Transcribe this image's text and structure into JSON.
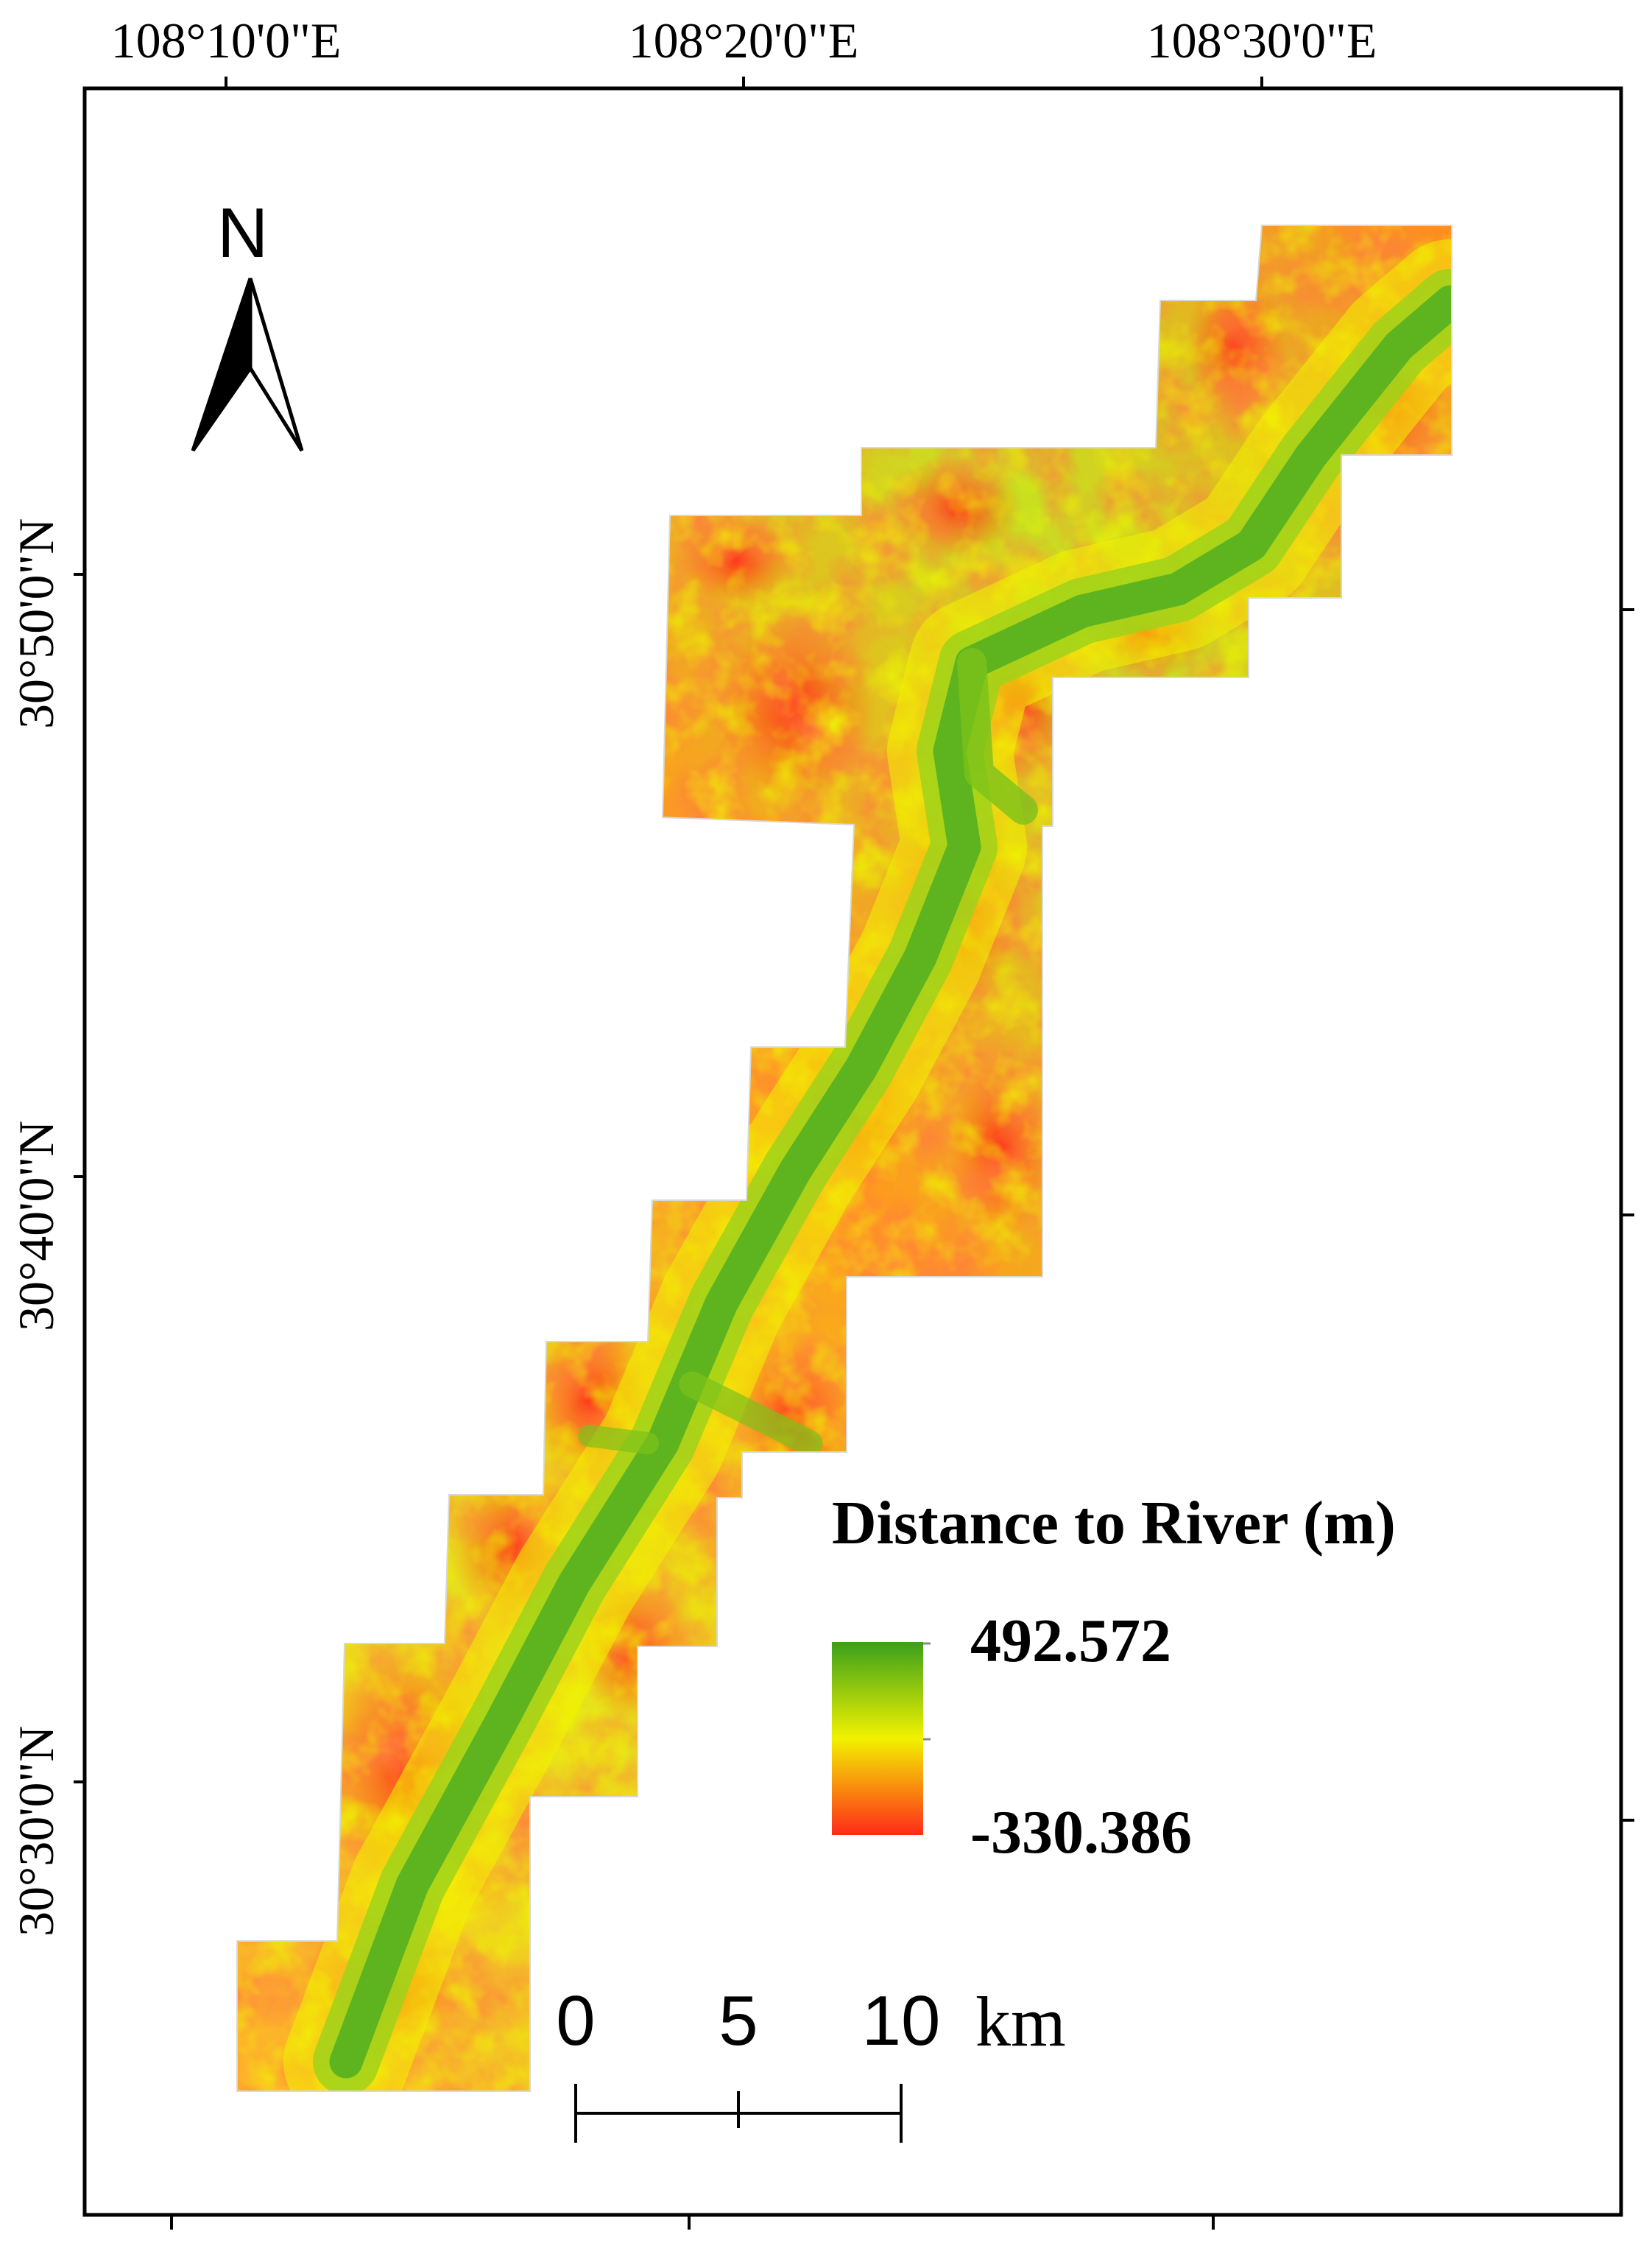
{
  "longitude_labels": [
    "108°10'0\"E",
    "108°20'0\"E",
    "108°30'0\"E"
  ],
  "latitude_labels": [
    "30°50'0\"N",
    "30°40'0\"N",
    "30°30'0\"N"
  ],
  "north_arrow": {
    "letter": "N",
    "icon": "north-arrow-icon"
  },
  "legend": {
    "title": "Distance to River (m)",
    "max_label": "492.572",
    "min_label": "-330.386",
    "colors": {
      "high": "#3aa01a",
      "mid": "#f2f200",
      "low": "#ff2a1a"
    }
  },
  "scale_bar": {
    "ticks": [
      "0",
      "5",
      "10"
    ],
    "unit": "km"
  },
  "colors": {
    "river_green": "#3aa01a",
    "terrain_yellow": "#e6f000",
    "terrain_orange": "#ff9a1e",
    "terrain_red": "#ff3a1a"
  }
}
